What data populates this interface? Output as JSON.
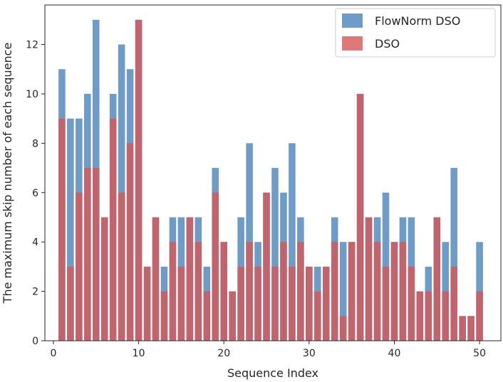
{
  "chart_data": {
    "type": "bar",
    "xlabel": "Sequence Index",
    "ylabel": "The maximum skip number of each sequence",
    "xlim": [
      -1,
      52.5
    ],
    "ylim": [
      0,
      13.6
    ],
    "xticks": [
      0,
      10,
      20,
      30,
      40,
      50
    ],
    "yticks": [
      0,
      2,
      4,
      6,
      8,
      10,
      12
    ],
    "grid": false,
    "legend_position": "top-right",
    "x": [
      1,
      2,
      3,
      4,
      5,
      6,
      7,
      8,
      9,
      10,
      11,
      12,
      13,
      14,
      15,
      16,
      17,
      18,
      19,
      20,
      21,
      22,
      23,
      24,
      25,
      26,
      27,
      28,
      29,
      30,
      31,
      32,
      33,
      34,
      35,
      36,
      37,
      38,
      39,
      40,
      41,
      42,
      43,
      44,
      45,
      46,
      47,
      48,
      49,
      50
    ],
    "series": [
      {
        "name": "FlowNorm DSO",
        "color": "#4a83b8",
        "opacity": 0.8,
        "values": [
          11,
          9,
          9,
          10,
          13,
          5,
          10,
          12,
          11,
          13,
          3,
          5,
          3,
          5,
          5,
          5,
          5,
          3,
          7,
          4,
          2,
          5,
          8,
          4,
          6,
          7,
          6,
          8,
          5,
          3,
          3,
          3,
          5,
          4,
          4,
          10,
          5,
          5,
          6,
          4,
          5,
          5,
          2,
          3,
          5,
          4,
          7,
          1,
          1,
          4
        ]
      },
      {
        "name": "DSO",
        "color": "#d45758",
        "opacity": 0.8,
        "values": [
          9,
          3,
          6,
          7,
          7,
          5,
          9,
          6,
          8,
          13,
          3,
          5,
          2,
          4,
          3,
          5,
          4,
          2,
          6,
          4,
          2,
          3,
          4,
          3,
          6,
          3,
          4,
          3,
          4,
          3,
          2,
          3,
          4,
          1,
          4,
          10,
          5,
          4,
          3,
          4,
          4,
          3,
          2,
          2,
          5,
          2,
          3,
          1,
          1,
          2
        ]
      }
    ]
  }
}
